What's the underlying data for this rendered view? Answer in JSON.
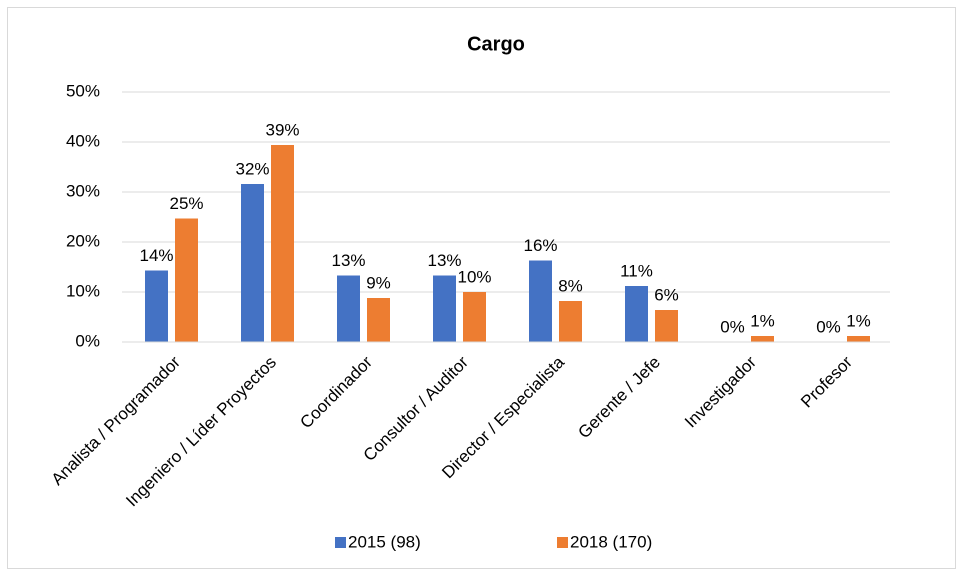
{
  "chart_data": {
    "type": "bar",
    "title": "Cargo",
    "categories": [
      "Analista / Programador",
      "Ingeniero / Líder Proyectos",
      "Coordinador",
      "Consultor / Auditor",
      "Director / Especialista",
      "Gerente / Jefe",
      "Investigador",
      "Profesor"
    ],
    "series": [
      {
        "name": "2015 (98)",
        "color": "#4472c4",
        "values": [
          14.3,
          31.6,
          13.3,
          13.3,
          16.3,
          11.2,
          0,
          0
        ],
        "value_labels": [
          "14%",
          "32%",
          "13%",
          "13%",
          "16%",
          "11%",
          "0%",
          "0%"
        ]
      },
      {
        "name": "2018 (170)",
        "color": "#ed7d31",
        "values": [
          24.7,
          39.4,
          8.8,
          10,
          8.2,
          6.4,
          1.2,
          1.2
        ],
        "value_labels": [
          "25%",
          "39%",
          "9%",
          "10%",
          "8%",
          "6%",
          "1%",
          "1%"
        ]
      }
    ],
    "ylim": [
      0,
      50
    ],
    "yticks": [
      {
        "value": 0,
        "label": "0%"
      },
      {
        "value": 10,
        "label": "10%"
      },
      {
        "value": 20,
        "label": "20%"
      },
      {
        "value": 30,
        "label": "30%"
      },
      {
        "value": 40,
        "label": "40%"
      },
      {
        "value": 50,
        "label": "50%"
      }
    ],
    "grid": true
  }
}
